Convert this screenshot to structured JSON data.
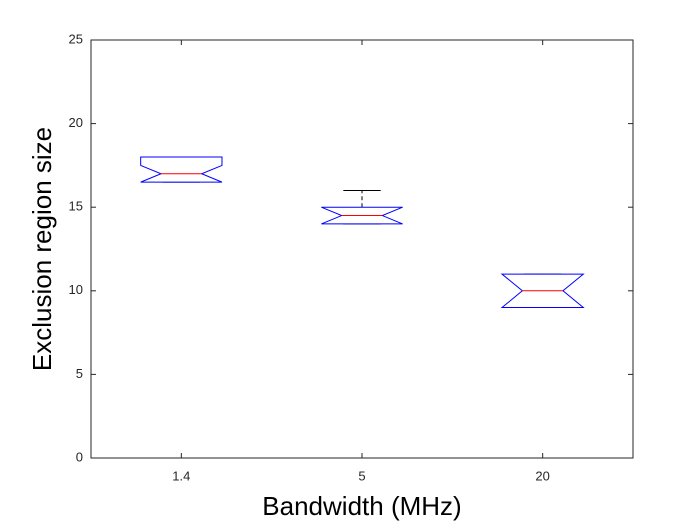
{
  "chart_data": {
    "type": "box",
    "x_label": "Bandwidth (MHz)",
    "y_label": "Exclusion region size",
    "categories": [
      "1.4",
      "5",
      "20"
    ],
    "boxes": [
      {
        "q1": 16.5,
        "median": 17,
        "q3": 18,
        "notch_lo": 16.5,
        "notch_hi": 17.5,
        "whisker_lo": 16.5,
        "whisker_hi": 18
      },
      {
        "q1": 14,
        "median": 14.5,
        "q3": 15,
        "notch_lo": 14,
        "notch_hi": 15,
        "whisker_lo": 14,
        "whisker_hi": 16
      },
      {
        "q1": 9,
        "median": 10,
        "q3": 11,
        "notch_lo": 9,
        "notch_hi": 11,
        "whisker_lo": 9,
        "whisker_hi": 11
      }
    ],
    "box_color": "#0000ff",
    "median_color": "#ff0000",
    "whisker_color": "#000000",
    "ylim": [
      0,
      25
    ],
    "yticks": [
      0,
      5,
      10,
      15,
      20,
      25
    ]
  }
}
